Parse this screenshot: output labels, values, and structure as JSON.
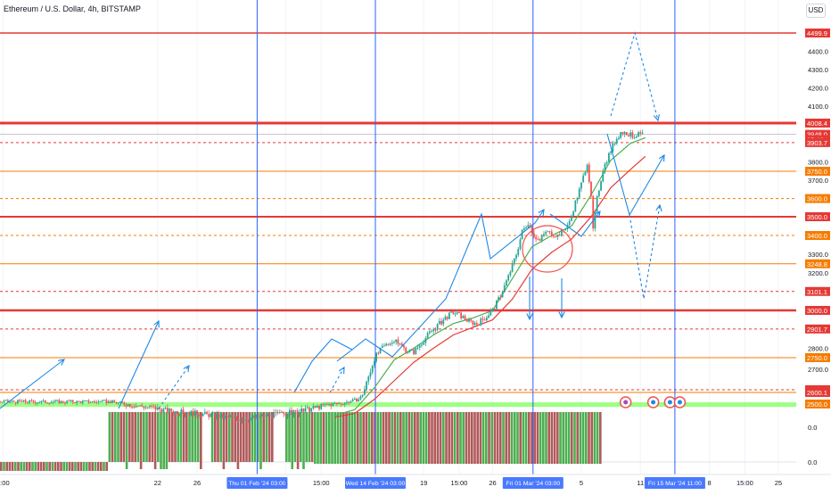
{
  "chart_data": {
    "type": "candlestick",
    "title": "Ethereum / U.S. Dollar, 4h, BITSTAMP",
    "currency": "USD",
    "colors": {
      "up": "#26a69a",
      "down": "#ef5350",
      "level_line": "#e53935",
      "orange_line": "#f57c00",
      "annotation": "#1e88e5",
      "vertical_marker": "#2962ff",
      "ma_fast": "#4caf50",
      "ma_slow": "#e53935",
      "support_zone": "#7cff5a",
      "osc_up": "#4caf50",
      "osc_down": "#b05a5a",
      "circle": "#ef5350"
    },
    "y_axis": {
      "range": [
        2460,
        4650
      ],
      "ticks": [
        2700.0,
        2800.0,
        2900.0,
        3200.0,
        3300.0,
        3700.0,
        3800.0,
        4100.0,
        4200.0,
        4300.0,
        4400.0
      ]
    },
    "price_labels": [
      {
        "value": 4499.9,
        "text": "4499.9",
        "kind": "red"
      },
      {
        "value": 4008.4,
        "text": "4008.4",
        "kind": "red"
      },
      {
        "value": 3948.0,
        "text": "3948.0",
        "kind": "red"
      },
      {
        "value": 3920.0,
        "text": "37:40",
        "kind": "red"
      },
      {
        "value": 3903.7,
        "text": "3903.7",
        "kind": "red"
      },
      {
        "value": 3750.0,
        "text": "3750.0",
        "kind": "orange"
      },
      {
        "value": 3600.0,
        "text": "3600.0",
        "kind": "orange"
      },
      {
        "value": 3500.0,
        "text": "3500.0",
        "kind": "red"
      },
      {
        "value": 3400.0,
        "text": "3400.0",
        "kind": "orange"
      },
      {
        "value": 3248.8,
        "text": "3248.8",
        "kind": "orange"
      },
      {
        "value": 3101.1,
        "text": "3101.1",
        "kind": "red"
      },
      {
        "value": 3000.0,
        "text": "3000.0",
        "kind": "red"
      },
      {
        "value": 2901.7,
        "text": "2901.7",
        "kind": "red"
      },
      {
        "value": 2750.0,
        "text": "2750.0",
        "kind": "orange"
      },
      {
        "value": 2611.8,
        "text": "2611.8",
        "kind": "red"
      },
      {
        "value": 2600.1,
        "text": "2600.1",
        "kind": "red"
      },
      {
        "value": 2500.0,
        "text": "2500.0",
        "kind": "orange"
      }
    ],
    "horizontal_levels": [
      {
        "value": 4499.9,
        "color": "red",
        "style": "solid",
        "width": 1.5
      },
      {
        "value": 4008.4,
        "color": "red",
        "style": "solid",
        "width": 3
      },
      {
        "value": 3948.0,
        "color": "grey",
        "style": "solid",
        "width": 0.8
      },
      {
        "value": 3903.7,
        "color": "red",
        "style": "dashed",
        "width": 1
      },
      {
        "value": 3750.0,
        "color": "orange",
        "style": "solid",
        "width": 1
      },
      {
        "value": 3600.0,
        "color": "orange",
        "style": "dashed",
        "width": 1
      },
      {
        "value": 3500.0,
        "color": "red",
        "style": "solid",
        "width": 2
      },
      {
        "value": 3400.0,
        "color": "orange",
        "style": "dashed",
        "width": 1
      },
      {
        "value": 3248.8,
        "color": "orange",
        "style": "solid",
        "width": 1
      },
      {
        "value": 3101.1,
        "color": "red",
        "style": "dashed",
        "width": 1
      },
      {
        "value": 3000.0,
        "color": "red",
        "style": "solid",
        "width": 2.5
      },
      {
        "value": 2901.7,
        "color": "red",
        "style": "dashed",
        "width": 1
      },
      {
        "value": 2750.0,
        "color": "orange",
        "style": "solid",
        "width": 1
      },
      {
        "value": 2611.8,
        "color": "red",
        "style": "dashed",
        "width": 1
      },
      {
        "value": 2600.1,
        "color": "orange",
        "style": "solid",
        "width": 1
      }
    ],
    "support_zone": [
      2485,
      2515
    ],
    "x_axis": {
      "ticks": [
        {
          "day": 6.3,
          "label": "5:00"
        },
        {
          "day": 22,
          "label": "22"
        },
        {
          "day": 26,
          "label": "26"
        },
        {
          "day": 35,
          "label": "5"
        },
        {
          "day": 38.6,
          "label": "15:00"
        },
        {
          "day": 49,
          "label": "19"
        },
        {
          "day": 52.6,
          "label": "15:00"
        },
        {
          "day": 56,
          "label": "26"
        },
        {
          "day": 65,
          "label": "5"
        },
        {
          "day": 71,
          "label": "11"
        },
        {
          "day": 78,
          "label": "8"
        },
        {
          "day": 81.6,
          "label": "15:00"
        },
        {
          "day": 85,
          "label": "25"
        }
      ],
      "highlighted": [
        {
          "day": 32.1,
          "label": "Thu 01 Feb '24   03:00"
        },
        {
          "day": 44.1,
          "label": "Wed 14 Feb '24   03:00"
        },
        {
          "day": 60.1,
          "label": "Fri 01 Mar '24   03:00"
        },
        {
          "day": 74.5,
          "label": "Fri 15 Mar '24   11:00"
        }
      ]
    },
    "vertical_markers": [
      32.1,
      44.1,
      60.1,
      74.5
    ],
    "price_series": [
      {
        "day": 17.0,
        "value": 2520
      },
      {
        "day": 18.5,
        "value": 2505
      },
      {
        "day": 20.0,
        "value": 2490
      },
      {
        "day": 21.5,
        "value": 2480
      },
      {
        "day": 23.0,
        "value": 2465
      },
      {
        "day": 24.5,
        "value": 2455
      },
      {
        "day": 26.0,
        "value": 2450
      },
      {
        "day": 27.5,
        "value": 2440
      },
      {
        "day": 29.0,
        "value": 2430
      },
      {
        "day": 30.5,
        "value": 2420
      },
      {
        "day": 32.0,
        "value": 2430
      },
      {
        "day": 33.5,
        "value": 2440
      },
      {
        "day": 35.0,
        "value": 2450
      },
      {
        "day": 36.5,
        "value": 2460
      },
      {
        "day": 38.0,
        "value": 2480
      },
      {
        "day": 39.5,
        "value": 2500
      },
      {
        "day": 40.5,
        "value": 2505
      },
      {
        "day": 41.5,
        "value": 2520
      },
      {
        "day": 42.5,
        "value": 2545
      },
      {
        "day": 43.2,
        "value": 2640
      },
      {
        "day": 44.0,
        "value": 2750
      },
      {
        "day": 44.8,
        "value": 2800
      },
      {
        "day": 45.6,
        "value": 2835
      },
      {
        "day": 46.4,
        "value": 2830
      },
      {
        "day": 47.2,
        "value": 2790
      },
      {
        "day": 48.0,
        "value": 2780
      },
      {
        "day": 48.8,
        "value": 2830
      },
      {
        "day": 49.6,
        "value": 2880
      },
      {
        "day": 50.4,
        "value": 2920
      },
      {
        "day": 51.2,
        "value": 2960
      },
      {
        "day": 52.0,
        "value": 2990
      },
      {
        "day": 52.8,
        "value": 2970
      },
      {
        "day": 53.6,
        "value": 2940
      },
      {
        "day": 54.4,
        "value": 2930
      },
      {
        "day": 55.2,
        "value": 2960
      },
      {
        "day": 56.0,
        "value": 3000
      },
      {
        "day": 56.8,
        "value": 3080
      },
      {
        "day": 57.6,
        "value": 3180
      },
      {
        "day": 58.4,
        "value": 3300
      },
      {
        "day": 59.0,
        "value": 3420
      },
      {
        "day": 59.6,
        "value": 3470
      },
      {
        "day": 60.2,
        "value": 3400
      },
      {
        "day": 60.8,
        "value": 3370
      },
      {
        "day": 61.4,
        "value": 3420
      },
      {
        "day": 62.0,
        "value": 3410
      },
      {
        "day": 62.6,
        "value": 3400
      },
      {
        "day": 63.2,
        "value": 3430
      },
      {
        "day": 63.8,
        "value": 3470
      },
      {
        "day": 64.4,
        "value": 3580
      },
      {
        "day": 65.0,
        "value": 3680
      },
      {
        "day": 65.6,
        "value": 3800
      },
      {
        "day": 66.0,
        "value": 3600
      },
      {
        "day": 66.2,
        "value": 3430
      },
      {
        "day": 66.6,
        "value": 3600
      },
      {
        "day": 67.2,
        "value": 3760
      },
      {
        "day": 67.8,
        "value": 3840
      },
      {
        "day": 68.4,
        "value": 3910
      },
      {
        "day": 69.0,
        "value": 3960
      },
      {
        "day": 69.6,
        "value": 3955
      },
      {
        "day": 70.2,
        "value": 3940
      },
      {
        "day": 70.8,
        "value": 3945
      },
      {
        "day": 71.4,
        "value": 3950
      }
    ],
    "moving_average_fast": [
      {
        "day": 40,
        "value": 2440
      },
      {
        "day": 42,
        "value": 2470
      },
      {
        "day": 44,
        "value": 2620
      },
      {
        "day": 46,
        "value": 2740
      },
      {
        "day": 48,
        "value": 2800
      },
      {
        "day": 50,
        "value": 2870
      },
      {
        "day": 52,
        "value": 2930
      },
      {
        "day": 54,
        "value": 2960
      },
      {
        "day": 56,
        "value": 3000
      },
      {
        "day": 58,
        "value": 3170
      },
      {
        "day": 60,
        "value": 3340
      },
      {
        "day": 62,
        "value": 3400
      },
      {
        "day": 64,
        "value": 3450
      },
      {
        "day": 66,
        "value": 3620
      },
      {
        "day": 68,
        "value": 3810
      },
      {
        "day": 70,
        "value": 3900
      },
      {
        "day": 71.5,
        "value": 3930
      }
    ],
    "moving_average_slow": [
      {
        "day": 40,
        "value": 2430
      },
      {
        "day": 42,
        "value": 2450
      },
      {
        "day": 44,
        "value": 2540
      },
      {
        "day": 46,
        "value": 2650
      },
      {
        "day": 48,
        "value": 2730
      },
      {
        "day": 50,
        "value": 2800
      },
      {
        "day": 52,
        "value": 2870
      },
      {
        "day": 54,
        "value": 2910
      },
      {
        "day": 56,
        "value": 2950
      },
      {
        "day": 58,
        "value": 3060
      },
      {
        "day": 60,
        "value": 3220
      },
      {
        "day": 62,
        "value": 3310
      },
      {
        "day": 64,
        "value": 3380
      },
      {
        "day": 66,
        "value": 3500
      },
      {
        "day": 68,
        "value": 3660
      },
      {
        "day": 70,
        "value": 3760
      },
      {
        "day": 71.5,
        "value": 3830
      }
    ],
    "oscillator": {
      "ticks": [
        {
          "value": 0.0,
          "label": "0.0"
        },
        {
          "value": 0.0,
          "label": "0.0"
        }
      ]
    },
    "event_icons": [
      {
        "day": 69.5,
        "label": "flash-icon"
      },
      {
        "day": 72.3,
        "label": "flag-icon"
      },
      {
        "day": 74.0,
        "label": "flag-icon"
      },
      {
        "day": 75.0,
        "label": "flag-icon"
      }
    ]
  }
}
